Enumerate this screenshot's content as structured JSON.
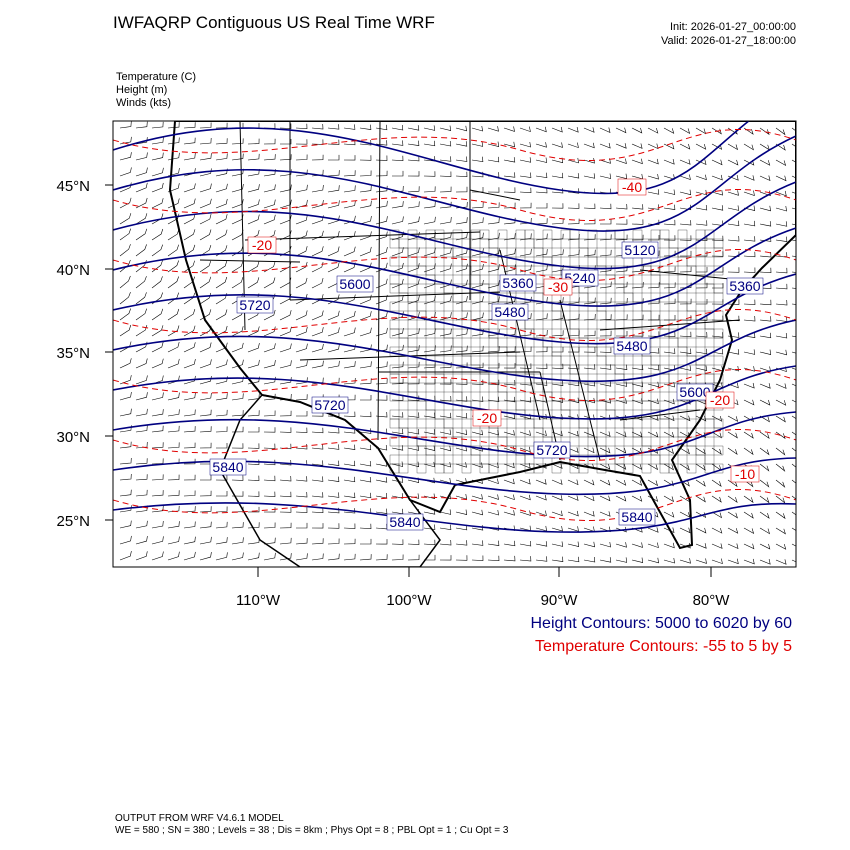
{
  "header": {
    "title": "IWFAQRP Contiguous US Real Time WRF",
    "init": "Init: 2026-01-27_00:00:00",
    "valid": "Valid: 2026-01-27_18:00:00"
  },
  "fields": [
    "Temperature   (C)",
    "Height   (m)",
    "Winds   (kts)"
  ],
  "lat_labels": [
    "45°N",
    "40°N",
    "35°N",
    "30°N",
    "25°N"
  ],
  "lon_labels": [
    "110°W",
    "100°W",
    "90°W",
    "80°W"
  ],
  "height_labels": [
    "5600",
    "5720",
    "5720",
    "5840",
    "5840",
    "5840",
    "5720",
    "5600",
    "5480",
    "5480",
    "5360",
    "5240",
    "5120",
    "5360"
  ],
  "temperature_labels": [
    "-20",
    "-40",
    "-30",
    "-20",
    "-20",
    "-10"
  ],
  "contour_info": {
    "height": "Height Contours: 5000 to 6020 by 60",
    "temperature": "Temperature Contours: -55 to 5 by 5"
  },
  "footer": [
    "OUTPUT FROM WRF V4.6.1 MODEL",
    "WE = 580 ; SN = 380 ; Levels = 38 ; Dis = 8km ; Phys Opt = 8 ; PBL Opt = 1 ; Cu Opt = 3"
  ]
}
